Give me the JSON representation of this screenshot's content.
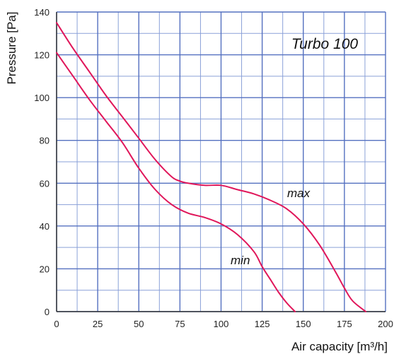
{
  "chart_data": {
    "type": "line",
    "title": "Turbo 100",
    "xlabel": "Air capacity [m³/h]",
    "ylabel": "Pressure [Pa]",
    "xlim": [
      0,
      200
    ],
    "ylim": [
      0,
      140
    ],
    "xticks": [
      0,
      25,
      50,
      75,
      100,
      125,
      150,
      175,
      200
    ],
    "yticks": [
      0,
      20,
      40,
      60,
      80,
      100,
      120,
      140
    ],
    "grid": true,
    "colors": {
      "curve": "#e0165a",
      "grid_major": "#5470c0",
      "grid_minor": "#8aa0d8",
      "axis": "#333333"
    },
    "series": [
      {
        "name": "max",
        "x": [
          0,
          10,
          20,
          30,
          40,
          50,
          60,
          70,
          75,
          80,
          90,
          100,
          110,
          120,
          130,
          140,
          150,
          160,
          170,
          175,
          180,
          188
        ],
        "y": [
          135,
          123,
          112,
          101,
          91,
          81,
          71,
          63,
          61,
          60,
          59,
          59,
          57,
          55,
          52,
          48,
          41,
          31,
          18,
          11,
          5,
          0
        ]
      },
      {
        "name": "min",
        "x": [
          0,
          10,
          20,
          30,
          40,
          50,
          60,
          70,
          80,
          90,
          100,
          110,
          120,
          125,
          130,
          135,
          140,
          145
        ],
        "y": [
          121,
          110,
          99,
          89,
          79,
          67,
          57,
          50,
          46,
          44,
          41,
          36,
          28,
          21,
          15,
          9,
          4,
          0
        ]
      }
    ]
  }
}
